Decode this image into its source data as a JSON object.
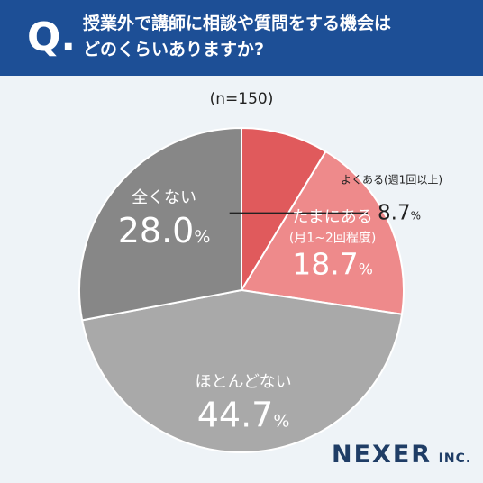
{
  "header": {
    "q_letter": "Q",
    "q_dot": ".",
    "line1": "授業外で講師に相談や質問をする機会は",
    "line2": "どのくらいありますか?"
  },
  "brand": {
    "name": "NEXER",
    "suffix": "INC."
  },
  "chart_data": {
    "type": "pie",
    "sample": "(n=150)",
    "start": "12 o'clock",
    "direction": "clockwise",
    "slices": [
      {
        "name": "よくある",
        "sub": "(週1回以上)",
        "value": 8.7,
        "unit": "%",
        "color": "#e05a5c"
      },
      {
        "name": "たまにある",
        "sub": "(月1~2回程度)",
        "value": 18.7,
        "unit": "%",
        "color": "#ee8a8b"
      },
      {
        "name": "ほとんどない",
        "sub": "",
        "value": 44.7,
        "unit": "%",
        "color": "#a9a9a9"
      },
      {
        "name": "全くない",
        "sub": "",
        "value": 28.0,
        "unit": "%",
        "color": "#878787"
      }
    ],
    "label_color": "#ffffff",
    "callout_color": "#222222"
  }
}
